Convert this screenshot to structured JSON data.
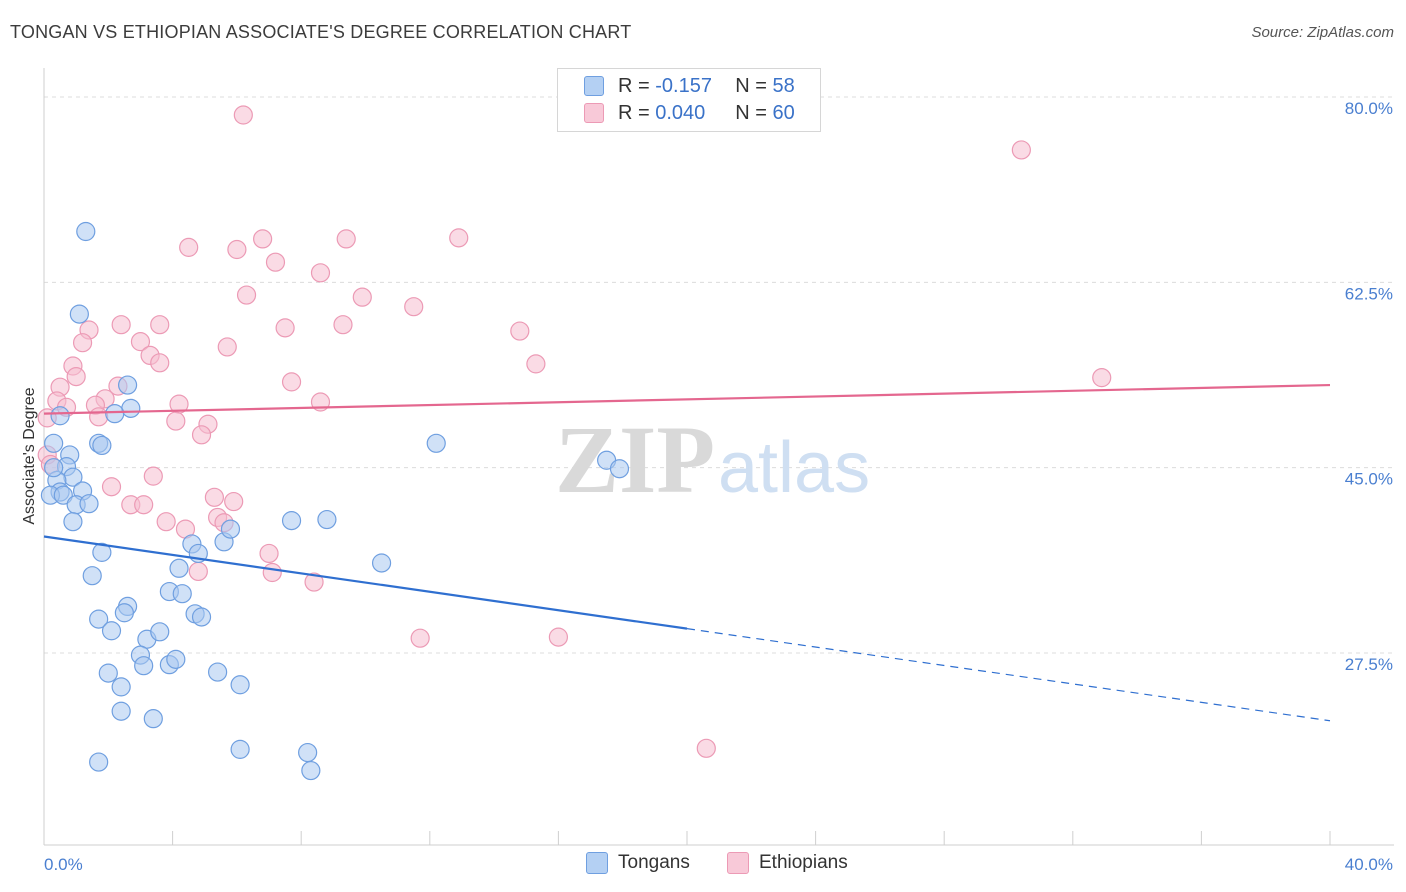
{
  "title": "TONGAN VS ETHIOPIAN ASSOCIATE'S DEGREE CORRELATION CHART",
  "source": "Source: ZipAtlas.com",
  "watermark": {
    "zip": "ZIP",
    "atlas": "atlas"
  },
  "legend": {
    "r_label": "R =",
    "n_label": "N =",
    "tongans": {
      "r": "-0.157",
      "n": "58"
    },
    "ethiopians": {
      "r": "0.040",
      "n": "60"
    }
  },
  "colors": {
    "tongans_fill": "#a9c8f0",
    "tongans_stroke": "#6f9fe0",
    "tongans_line": "#2f6fd0",
    "ethiopians_fill": "#f6bed0",
    "ethiopians_stroke": "#ec9ab5",
    "ethiopians_line": "#e4678f",
    "tick_text": "#4a7fd0",
    "grid": "#dcdcdc"
  },
  "chart_data": {
    "type": "scatter",
    "title": "TONGAN VS ETHIOPIAN ASSOCIATE'S DEGREE CORRELATION CHART",
    "xlabel": "",
    "ylabel": "Associate's Degree",
    "xlim": [
      0,
      40
    ],
    "ylim": [
      9,
      82
    ],
    "x_tick_labels": [
      "0.0%",
      "40.0%"
    ],
    "y_ticks": [
      27.5,
      45.0,
      62.5,
      80.0
    ],
    "y_tick_labels": [
      "27.5%",
      "45.0%",
      "62.5%",
      "80.0%"
    ],
    "grid": true,
    "legend_position": "top-center",
    "series": [
      {
        "name": "Tongans",
        "points": [
          [
            1.3,
            67.3
          ],
          [
            1.1,
            59.5
          ],
          [
            2.6,
            52.8
          ],
          [
            2.7,
            50.6
          ],
          [
            0.5,
            49.9
          ],
          [
            2.2,
            50.1
          ],
          [
            0.3,
            47.3
          ],
          [
            0.8,
            46.2
          ],
          [
            1.7,
            47.3
          ],
          [
            1.8,
            47.1
          ],
          [
            0.7,
            45.1
          ],
          [
            0.9,
            44.1
          ],
          [
            0.4,
            43.8
          ],
          [
            0.5,
            42.7
          ],
          [
            0.2,
            42.4
          ],
          [
            0.6,
            42.4
          ],
          [
            1.2,
            42.8
          ],
          [
            1.0,
            41.5
          ],
          [
            1.4,
            41.6
          ],
          [
            0.9,
            39.9
          ],
          [
            1.8,
            37.0
          ],
          [
            1.5,
            34.8
          ],
          [
            4.2,
            35.5
          ],
          [
            4.6,
            37.8
          ],
          [
            5.6,
            38.0
          ],
          [
            5.8,
            39.2
          ],
          [
            4.8,
            36.9
          ],
          [
            7.7,
            40.0
          ],
          [
            8.8,
            40.1
          ],
          [
            10.5,
            36.0
          ],
          [
            12.2,
            47.3
          ],
          [
            17.5,
            45.7
          ],
          [
            17.9,
            44.9
          ],
          [
            3.9,
            33.3
          ],
          [
            4.3,
            33.1
          ],
          [
            2.6,
            31.9
          ],
          [
            2.5,
            31.3
          ],
          [
            4.7,
            31.2
          ],
          [
            4.9,
            30.9
          ],
          [
            1.7,
            30.7
          ],
          [
            2.1,
            29.6
          ],
          [
            3.2,
            28.8
          ],
          [
            3.6,
            29.5
          ],
          [
            3.0,
            27.3
          ],
          [
            3.1,
            26.3
          ],
          [
            3.9,
            26.4
          ],
          [
            4.1,
            26.9
          ],
          [
            5.4,
            25.7
          ],
          [
            2.0,
            25.6
          ],
          [
            2.4,
            24.3
          ],
          [
            6.1,
            24.5
          ],
          [
            2.4,
            22.0
          ],
          [
            3.4,
            21.3
          ],
          [
            6.1,
            18.4
          ],
          [
            8.2,
            18.1
          ],
          [
            8.3,
            16.4
          ],
          [
            1.7,
            17.2
          ],
          [
            0.3,
            45.0
          ]
        ]
      },
      {
        "name": "Ethiopians",
        "points": [
          [
            6.2,
            78.3
          ],
          [
            30.4,
            75.0
          ],
          [
            6.8,
            66.6
          ],
          [
            9.4,
            66.6
          ],
          [
            12.9,
            66.7
          ],
          [
            4.5,
            65.8
          ],
          [
            6.0,
            65.6
          ],
          [
            7.2,
            64.4
          ],
          [
            8.6,
            63.4
          ],
          [
            6.3,
            61.3
          ],
          [
            9.9,
            61.1
          ],
          [
            11.5,
            60.2
          ],
          [
            2.4,
            58.5
          ],
          [
            3.6,
            58.5
          ],
          [
            7.5,
            58.2
          ],
          [
            9.3,
            58.5
          ],
          [
            1.4,
            58.0
          ],
          [
            14.8,
            57.9
          ],
          [
            3.0,
            56.9
          ],
          [
            5.7,
            56.4
          ],
          [
            1.2,
            56.8
          ],
          [
            3.3,
            55.6
          ],
          [
            3.6,
            54.9
          ],
          [
            0.9,
            54.6
          ],
          [
            1.0,
            53.6
          ],
          [
            15.3,
            54.8
          ],
          [
            32.9,
            53.5
          ],
          [
            7.7,
            53.1
          ],
          [
            2.3,
            52.7
          ],
          [
            0.5,
            52.6
          ],
          [
            1.9,
            51.5
          ],
          [
            0.4,
            51.3
          ],
          [
            1.6,
            50.9
          ],
          [
            4.2,
            51.0
          ],
          [
            8.6,
            51.2
          ],
          [
            0.7,
            50.7
          ],
          [
            1.7,
            49.8
          ],
          [
            4.1,
            49.4
          ],
          [
            5.1,
            49.1
          ],
          [
            4.9,
            48.1
          ],
          [
            0.1,
            49.7
          ],
          [
            0.1,
            46.2
          ],
          [
            0.2,
            45.3
          ],
          [
            3.4,
            44.2
          ],
          [
            2.1,
            43.2
          ],
          [
            5.3,
            42.2
          ],
          [
            5.9,
            41.8
          ],
          [
            2.7,
            41.5
          ],
          [
            3.1,
            41.5
          ],
          [
            5.4,
            40.3
          ],
          [
            5.6,
            39.8
          ],
          [
            3.8,
            39.9
          ],
          [
            4.4,
            39.2
          ],
          [
            7.0,
            36.9
          ],
          [
            7.1,
            35.1
          ],
          [
            4.8,
            35.2
          ],
          [
            8.4,
            34.2
          ],
          [
            11.7,
            28.9
          ],
          [
            16.0,
            29.0
          ],
          [
            20.6,
            18.5
          ]
        ]
      }
    ],
    "trend_lines": [
      {
        "name": "Tongans",
        "solid": [
          [
            0.0,
            38.5
          ],
          [
            20.0,
            29.8
          ]
        ],
        "dashed": [
          [
            20.0,
            29.8
          ],
          [
            40.0,
            21.1
          ]
        ]
      },
      {
        "name": "Ethiopians",
        "solid": [
          [
            0.0,
            50.1
          ],
          [
            40.0,
            52.8
          ]
        ]
      }
    ]
  },
  "bottom_legend": {
    "tongans": "Tongans",
    "ethiopians": "Ethiopians"
  }
}
